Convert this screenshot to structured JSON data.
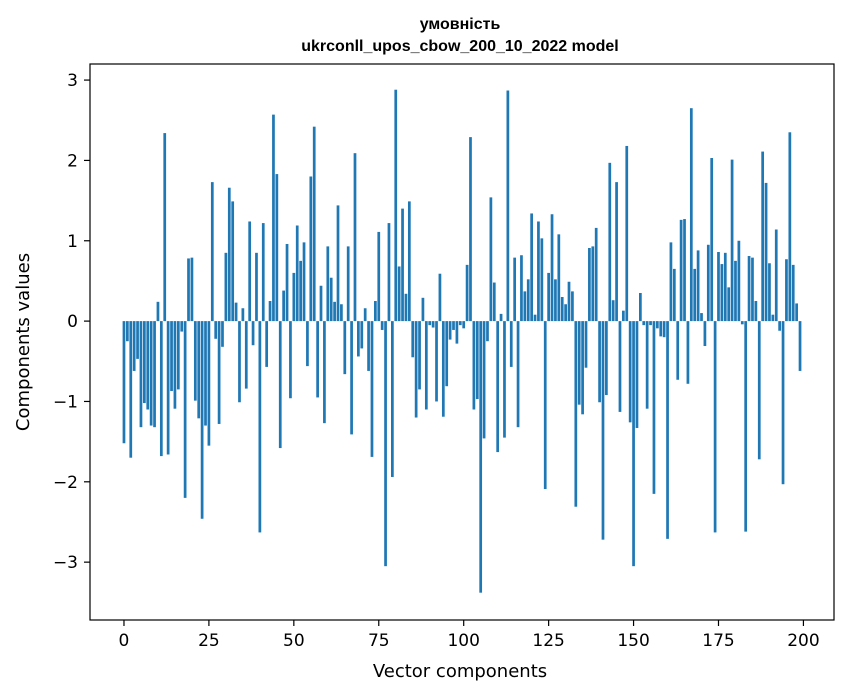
{
  "chart_data": {
    "type": "bar",
    "title_line1": "умовність",
    "title_line2": "ukrconll_upos_cbow_200_10_2022 model",
    "xlabel": "Vector components",
    "ylabel": "Components values",
    "xlim": [
      -10,
      209
    ],
    "ylim": [
      -3.72,
      3.2
    ],
    "xticks": [
      0,
      25,
      50,
      75,
      100,
      125,
      150,
      175,
      200
    ],
    "yticks": [
      -3,
      -2,
      -1,
      0,
      1,
      2,
      3
    ],
    "xtick_labels": [
      "0",
      "25",
      "50",
      "75",
      "100",
      "125",
      "150",
      "175",
      "200"
    ],
    "ytick_labels": [
      "−3",
      "−2",
      "−1",
      "0",
      "1",
      "2",
      "3"
    ],
    "grid": false,
    "bar_color": "#1f77b4",
    "values": [
      -1.52,
      -0.25,
      -1.7,
      -0.62,
      -0.47,
      -1.32,
      -1.02,
      -1.1,
      -1.3,
      -1.32,
      0.24,
      -1.68,
      2.34,
      -1.66,
      -0.87,
      -1.09,
      -0.85,
      -0.13,
      -2.2,
      0.78,
      0.79,
      -0.99,
      -1.21,
      -2.46,
      -1.3,
      -1.55,
      1.73,
      -0.22,
      -1.28,
      -0.32,
      0.85,
      1.66,
      1.49,
      0.23,
      -1.01,
      0.16,
      -0.84,
      1.24,
      -0.3,
      0.85,
      -2.63,
      1.22,
      -0.57,
      0.25,
      2.57,
      1.83,
      -1.58,
      0.38,
      0.96,
      -0.96,
      0.6,
      1.19,
      0.75,
      0.98,
      -0.56,
      1.8,
      2.42,
      -0.95,
      0.44,
      -1.27,
      0.93,
      0.54,
      0.24,
      1.44,
      0.21,
      -0.66,
      0.93,
      -1.41,
      2.09,
      -0.44,
      -0.34,
      0.16,
      -0.62,
      -1.69,
      0.25,
      1.11,
      -0.11,
      -3.05,
      1.22,
      -1.94,
      2.88,
      0.68,
      1.4,
      0.34,
      1.49,
      -0.45,
      -1.2,
      -0.85,
      0.29,
      -1.1,
      -0.05,
      -0.08,
      -1.0,
      0.59,
      -1.19,
      -0.81,
      -0.23,
      -0.11,
      -0.28,
      -0.05,
      -0.09,
      0.7,
      2.29,
      -1.1,
      -0.97,
      -3.38,
      -1.46,
      -0.25,
      1.54,
      0.48,
      -1.63,
      0.09,
      -1.45,
      2.87,
      -0.57,
      0.79,
      -1.32,
      0.82,
      0.37,
      0.52,
      1.34,
      0.08,
      1.24,
      1.03,
      -2.09,
      0.6,
      1.33,
      0.52,
      1.08,
      0.3,
      0.21,
      0.49,
      0.37,
      -2.31,
      -1.04,
      -1.16,
      -0.58,
      0.91,
      0.93,
      1.16,
      -1.01,
      -2.72,
      -0.92,
      1.97,
      0.26,
      1.73,
      -1.13,
      0.13,
      2.18,
      -1.26,
      -3.05,
      -1.33,
      0.35,
      -0.05,
      -1.09,
      -0.05,
      -2.15,
      -0.09,
      -0.19,
      -0.2,
      -2.71,
      0.98,
      0.65,
      -0.73,
      1.26,
      1.27,
      -0.78,
      2.65,
      0.65,
      0.88,
      0.1,
      -0.31,
      0.95,
      2.03,
      -2.63,
      0.86,
      0.71,
      0.85,
      0.42,
      2.01,
      0.75,
      1.0,
      -0.04,
      -2.62,
      0.81,
      0.79,
      0.25,
      -1.72,
      2.11,
      1.72,
      0.72,
      0.08,
      1.14,
      -0.12,
      -2.03,
      0.77,
      2.35,
      0.7,
      0.22,
      -0.62
    ]
  }
}
